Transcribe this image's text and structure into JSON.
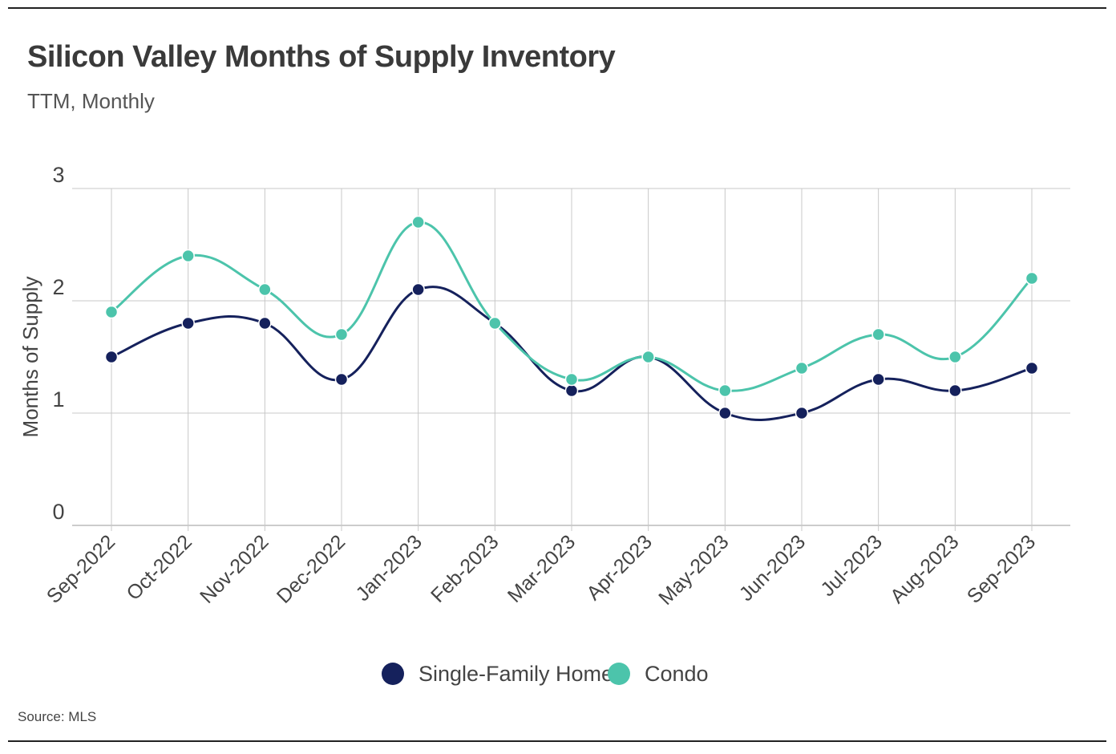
{
  "title": "Silicon Valley Months of Supply Inventory",
  "subtitle": "TTM, Monthly",
  "source": "Source:  MLS",
  "colors": {
    "single_family": "#15215c",
    "condo": "#4cc4ab",
    "grid": "#c8c8c8",
    "axis": "#9a9a9a"
  },
  "chart_data": {
    "type": "line",
    "title": "Silicon Valley Months of Supply Inventory",
    "subtitle": "TTM, Monthly",
    "xlabel": "",
    "ylabel": "Months of Supply",
    "ylim": [
      0,
      3
    ],
    "yticks": [
      0,
      1,
      2,
      3
    ],
    "grid": true,
    "legend_position": "bottom-center",
    "categories": [
      "Sep-2022",
      "Oct-2022",
      "Nov-2022",
      "Dec-2022",
      "Jan-2023",
      "Feb-2023",
      "Mar-2023",
      "Apr-2023",
      "May-2023",
      "Jun-2023",
      "Jul-2023",
      "Aug-2023",
      "Sep-2023"
    ],
    "series": [
      {
        "name": "Single-Family Home",
        "values": [
          1.5,
          1.8,
          1.8,
          1.3,
          2.1,
          1.8,
          1.2,
          1.5,
          1.0,
          1.0,
          1.3,
          1.2,
          1.4
        ]
      },
      {
        "name": "Condo",
        "values": [
          1.9,
          2.4,
          2.1,
          1.7,
          2.7,
          1.8,
          1.3,
          1.5,
          1.2,
          1.4,
          1.7,
          1.5,
          2.2
        ]
      }
    ]
  }
}
